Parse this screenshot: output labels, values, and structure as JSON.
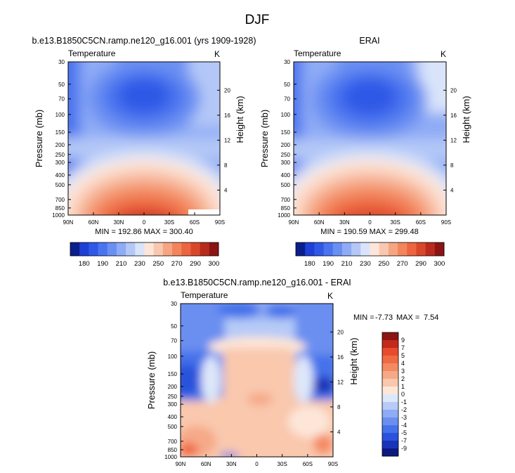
{
  "figure_title": "DJF",
  "chart_data": [
    {
      "type": "heatmap",
      "title": "b.e13.B1850C5CN.ramp.ne120_g16.001 (yrs 1909-1928)",
      "subtitle_left": "Temperature",
      "subtitle_right": "K",
      "xlabel": "",
      "ylabel": "Pressure (mb)",
      "y2label": "Height (km)",
      "x_ticks": [
        "90N",
        "60N",
        "30N",
        "0",
        "30S",
        "60S",
        "90S"
      ],
      "y_ticks": [
        "30",
        "50",
        "70",
        "100",
        "150",
        "200",
        "250",
        "300",
        "400",
        "500",
        "700",
        "850",
        "1000"
      ],
      "y2_ticks": [
        "20",
        "16",
        "12",
        "8",
        "4"
      ],
      "ylim": [
        1000,
        30
      ],
      "y_scale": "log",
      "stats": "MIN = 192.86  MAX = 300.40",
      "min": 192.86,
      "max": 300.4,
      "colorbar": {
        "orientation": "horizontal",
        "labels": [
          "180",
          "190",
          "210",
          "230",
          "250",
          "270",
          "290",
          "300"
        ],
        "colors": [
          "#0a1f8c",
          "#1f3fd6",
          "#2f58e6",
          "#4a73ef",
          "#6a8ff2",
          "#8eabf5",
          "#b4c8f7",
          "#d9e4fa",
          "#fde5d8",
          "#f9c7b0",
          "#f5a582",
          "#f2855c",
          "#ec6440",
          "#d9472a",
          "#b82b1c",
          "#8c1414"
        ]
      }
    },
    {
      "type": "heatmap",
      "title": "ERAI",
      "subtitle_left": "Temperature",
      "subtitle_right": "K",
      "xlabel": "",
      "ylabel": "Pressure (mb)",
      "y2label": "Height (km)",
      "x_ticks": [
        "90N",
        "60N",
        "30N",
        "0",
        "30S",
        "60S",
        "90S"
      ],
      "y_ticks": [
        "30",
        "50",
        "70",
        "100",
        "150",
        "200",
        "250",
        "300",
        "400",
        "500",
        "700",
        "850",
        "1000"
      ],
      "y2_ticks": [
        "20",
        "16",
        "12",
        "8",
        "4"
      ],
      "ylim": [
        1000,
        30
      ],
      "y_scale": "log",
      "stats": "MIN = 190.59  MAX = 299.48",
      "min": 190.59,
      "max": 299.48,
      "colorbar": {
        "orientation": "horizontal",
        "labels": [
          "180",
          "190",
          "210",
          "230",
          "250",
          "270",
          "290",
          "300"
        ],
        "colors": [
          "#0a1f8c",
          "#1f3fd6",
          "#2f58e6",
          "#4a73ef",
          "#6a8ff2",
          "#8eabf5",
          "#b4c8f7",
          "#d9e4fa",
          "#fde5d8",
          "#f9c7b0",
          "#f5a582",
          "#f2855c",
          "#ec6440",
          "#d9472a",
          "#b82b1c",
          "#8c1414"
        ]
      }
    },
    {
      "type": "heatmap",
      "title": "b.e13.B1850C5CN.ramp.ne120_g16.001 - ERAI",
      "subtitle_left": "Temperature",
      "subtitle_right": "K",
      "xlabel": "",
      "ylabel": "Pressure (mb)",
      "y2label": "Height (km)",
      "x_ticks": [
        "90N",
        "60N",
        "30N",
        "0",
        "30S",
        "60S",
        "90S"
      ],
      "y_ticks": [
        "30",
        "50",
        "70",
        "100",
        "150",
        "200",
        "250",
        "300",
        "400",
        "500",
        "700",
        "850",
        "1000"
      ],
      "y2_ticks": [
        "20",
        "16",
        "12",
        "8",
        "4"
      ],
      "ylim": [
        1000,
        30
      ],
      "y_scale": "log",
      "stats_min_label": "MIN =",
      "stats_min_value": "-7.73",
      "stats_max_label": "MAX =",
      "stats_max_value": "7.54",
      "min": -7.73,
      "max": 7.54,
      "colorbar": {
        "orientation": "vertical",
        "labels": [
          "9",
          "7",
          "5",
          "4",
          "3",
          "2",
          "1",
          "0",
          "-1",
          "-2",
          "-3",
          "-4",
          "-5",
          "-7",
          "-9"
        ],
        "colors": [
          "#8c1414",
          "#c42a1c",
          "#e84a2c",
          "#f06a42",
          "#f48a62",
          "#f6a988",
          "#f9c8ad",
          "#fde6d8",
          "#dde7fa",
          "#b6cbf7",
          "#8eabf4",
          "#6a8ff0",
          "#4472ea",
          "#2a52dc",
          "#1a34b8",
          "#0c1a80"
        ]
      }
    }
  ]
}
